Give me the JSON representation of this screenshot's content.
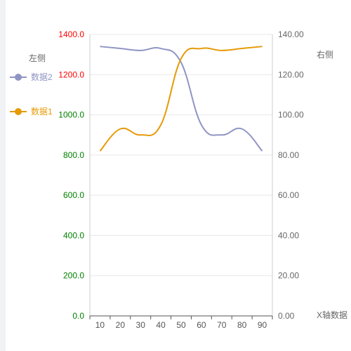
{
  "chart_data": {
    "type": "line",
    "x_label": "X轴数据",
    "categories": [
      10,
      20,
      30,
      40,
      50,
      60,
      70,
      80,
      90
    ],
    "left_axis": {
      "name": "左侧",
      "range": [
        0,
        1400
      ],
      "ticks": [
        "0.0",
        "200.0",
        "400.0",
        "600.0",
        "800.0",
        "1000.0",
        "1200.0",
        "1400.0"
      ],
      "tick_colors": [
        "#008000",
        "#008000",
        "#008000",
        "#008000",
        "#008000",
        "#008000",
        "#ff0000",
        "#ff0000"
      ]
    },
    "right_axis": {
      "name": "右侧",
      "range": [
        0,
        140
      ],
      "ticks": [
        "0.00",
        "20.00",
        "40.00",
        "60.00",
        "80.00",
        "100.00",
        "120.00",
        "140.00"
      ]
    },
    "grid": true,
    "legend_position": "left",
    "series": [
      {
        "name": "数据2",
        "axis": "left",
        "color": "#8f95c3",
        "values": [
          1340,
          1330,
          1320,
          1330,
          1260,
          950,
          900,
          930,
          820
        ]
      },
      {
        "name": "数据1",
        "axis": "left",
        "color": "#e69a07",
        "values": [
          820,
          930,
          900,
          950,
          1280,
          1330,
          1320,
          1330,
          1340
        ]
      }
    ]
  }
}
